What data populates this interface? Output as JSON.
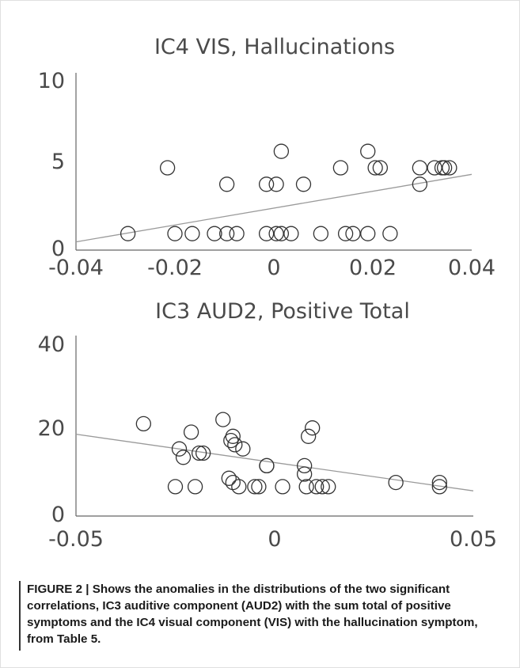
{
  "chart_data": [
    {
      "type": "scatter",
      "title": "IC4 VIS, Hallucinations",
      "xlim": [
        -0.04,
        0.04
      ],
      "ylim": [
        0,
        10
      ],
      "xticks": [
        "-0.04",
        "-0.02",
        "0",
        "0.02",
        "0.04"
      ],
      "yticks": [
        "0",
        "5",
        "10"
      ],
      "points": [
        {
          "x": -0.0295,
          "y": 1
        },
        {
          "x": -0.0215,
          "y": 5
        },
        {
          "x": -0.02,
          "y": 1
        },
        {
          "x": -0.0165,
          "y": 1
        },
        {
          "x": -0.012,
          "y": 1
        },
        {
          "x": -0.0095,
          "y": 4
        },
        {
          "x": -0.0095,
          "y": 1
        },
        {
          "x": -0.0075,
          "y": 1
        },
        {
          "x": -0.0015,
          "y": 4
        },
        {
          "x": -0.0015,
          "y": 1
        },
        {
          "x": 0.0005,
          "y": 4
        },
        {
          "x": 0.0005,
          "y": 1
        },
        {
          "x": 0.0015,
          "y": 6
        },
        {
          "x": 0.0015,
          "y": 1
        },
        {
          "x": 0.0035,
          "y": 1
        },
        {
          "x": 0.006,
          "y": 4
        },
        {
          "x": 0.0095,
          "y": 1
        },
        {
          "x": 0.0135,
          "y": 5
        },
        {
          "x": 0.0145,
          "y": 1
        },
        {
          "x": 0.016,
          "y": 1
        },
        {
          "x": 0.019,
          "y": 6
        },
        {
          "x": 0.019,
          "y": 1
        },
        {
          "x": 0.0205,
          "y": 5
        },
        {
          "x": 0.0215,
          "y": 5
        },
        {
          "x": 0.0235,
          "y": 1
        },
        {
          "x": 0.0295,
          "y": 5
        },
        {
          "x": 0.0295,
          "y": 4
        },
        {
          "x": 0.0325,
          "y": 5
        },
        {
          "x": 0.0345,
          "y": 5
        },
        {
          "x": 0.0355,
          "y": 5
        },
        {
          "x": 0.034,
          "y": 5
        }
      ],
      "fit_line": {
        "x": [
          -0.04,
          0.04
        ],
        "y": [
          0.5,
          4.6
        ]
      }
    },
    {
      "type": "scatter",
      "title": "IC3 AUD2, Positive Total",
      "xlim": [
        -0.05,
        0.05
      ],
      "ylim": [
        0,
        40
      ],
      "xticks": [
        "-0.05",
        "0",
        "0.05"
      ],
      "yticks": [
        "0",
        "20",
        "40"
      ],
      "points": [
        {
          "x": -0.033,
          "y": 22
        },
        {
          "x": -0.024,
          "y": 16
        },
        {
          "x": -0.023,
          "y": 14
        },
        {
          "x": -0.025,
          "y": 7
        },
        {
          "x": -0.021,
          "y": 20
        },
        {
          "x": -0.02,
          "y": 7
        },
        {
          "x": -0.019,
          "y": 15
        },
        {
          "x": -0.018,
          "y": 15
        },
        {
          "x": -0.013,
          "y": 23
        },
        {
          "x": -0.011,
          "y": 18
        },
        {
          "x": -0.0105,
          "y": 19
        },
        {
          "x": -0.01,
          "y": 17
        },
        {
          "x": -0.0115,
          "y": 9
        },
        {
          "x": -0.0105,
          "y": 8
        },
        {
          "x": -0.009,
          "y": 7
        },
        {
          "x": -0.008,
          "y": 16
        },
        {
          "x": -0.005,
          "y": 7
        },
        {
          "x": -0.004,
          "y": 7
        },
        {
          "x": -0.002,
          "y": 12
        },
        {
          "x": -0.002,
          "y": 12
        },
        {
          "x": 0.002,
          "y": 7
        },
        {
          "x": 0.0075,
          "y": 12
        },
        {
          "x": 0.0075,
          "y": 10
        },
        {
          "x": 0.008,
          "y": 7
        },
        {
          "x": 0.0085,
          "y": 19
        },
        {
          "x": 0.0095,
          "y": 21
        },
        {
          "x": 0.0105,
          "y": 7
        },
        {
          "x": 0.012,
          "y": 7
        },
        {
          "x": 0.0135,
          "y": 7
        },
        {
          "x": 0.0305,
          "y": 8
        },
        {
          "x": 0.0415,
          "y": 8
        },
        {
          "x": 0.0415,
          "y": 7
        }
      ],
      "fit_line": {
        "x": [
          -0.05,
          0.05
        ],
        "y": [
          19.5,
          6.0
        ]
      }
    }
  ],
  "caption": {
    "label": "FIGURE 2 | ",
    "text": "Shows the anomalies in the distributions of the two significant correlations, IC3 auditive component (AUD2) with the sum total of positive symptoms and the IC4 visual component (VIS) with the hallucination symptom, from Table 5."
  }
}
